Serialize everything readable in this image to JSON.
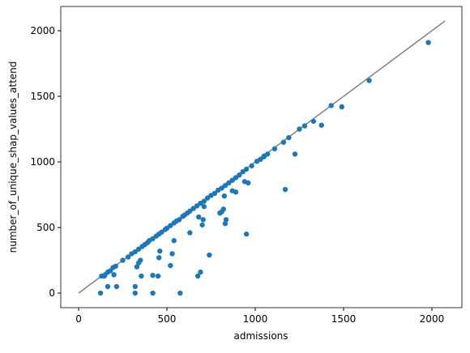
{
  "chart_data": {
    "type": "scatter",
    "xlabel": "admissions",
    "ylabel": "number_of_unique_shap_values_attend",
    "color": "#1f77b4",
    "x": [
      124,
      145,
      165,
      215,
      200,
      320,
      320,
      330,
      340,
      350,
      355,
      420,
      420,
      450,
      455,
      460,
      520,
      530,
      540,
      575,
      630,
      675,
      680,
      690,
      700,
      705,
      710,
      740,
      800,
      810,
      820,
      825,
      830,
      835,
      870,
      890,
      950,
      940,
      960,
      1050,
      1170,
      1225,
      1375,
      1490,
      1645,
      1980,
      130,
      150,
      165,
      180,
      195,
      210,
      250,
      280,
      300,
      320,
      340,
      360,
      375,
      390,
      400,
      420,
      440,
      455,
      470,
      490,
      500,
      520,
      540,
      555,
      570,
      590,
      600,
      615,
      630,
      650,
      670,
      690,
      710,
      730,
      750,
      770,
      790,
      810,
      830,
      850,
      870,
      890,
      910,
      930,
      950,
      980,
      1010,
      1030,
      1050,
      1070,
      1110,
      1160,
      1190,
      1250,
      1280,
      1330,
      1430
    ],
    "values": [
      0,
      130,
      50,
      50,
      140,
      50,
      0,
      200,
      230,
      250,
      130,
      135,
      0,
      130,
      270,
      320,
      210,
      300,
      400,
      0,
      460,
      130,
      580,
      160,
      520,
      560,
      660,
      290,
      610,
      620,
      640,
      740,
      530,
      560,
      780,
      770,
      450,
      850,
      840,
      1040,
      790,
      1060,
      1280,
      1420,
      1620,
      1910,
      130,
      140,
      160,
      170,
      195,
      205,
      250,
      275,
      300,
      315,
      335,
      355,
      370,
      385,
      400,
      415,
      435,
      450,
      465,
      485,
      495,
      515,
      535,
      550,
      560,
      585,
      595,
      610,
      625,
      645,
      665,
      685,
      700,
      725,
      745,
      760,
      785,
      800,
      820,
      840,
      860,
      880,
      900,
      925,
      945,
      970,
      1005,
      1020,
      1045,
      1060,
      1100,
      1150,
      1185,
      1250,
      1275,
      1310,
      1430
    ],
    "reference_line": {
      "x": [
        0,
        2075
      ],
      "y": [
        0,
        2075
      ],
      "color": "#808080"
    },
    "xlim": [
      -101,
      2170
    ],
    "ylim": [
      -111,
      2185
    ],
    "xticks": [
      0,
      500,
      1000,
      1500,
      2000
    ],
    "yticks": [
      0,
      500,
      1000,
      1500,
      2000
    ]
  }
}
